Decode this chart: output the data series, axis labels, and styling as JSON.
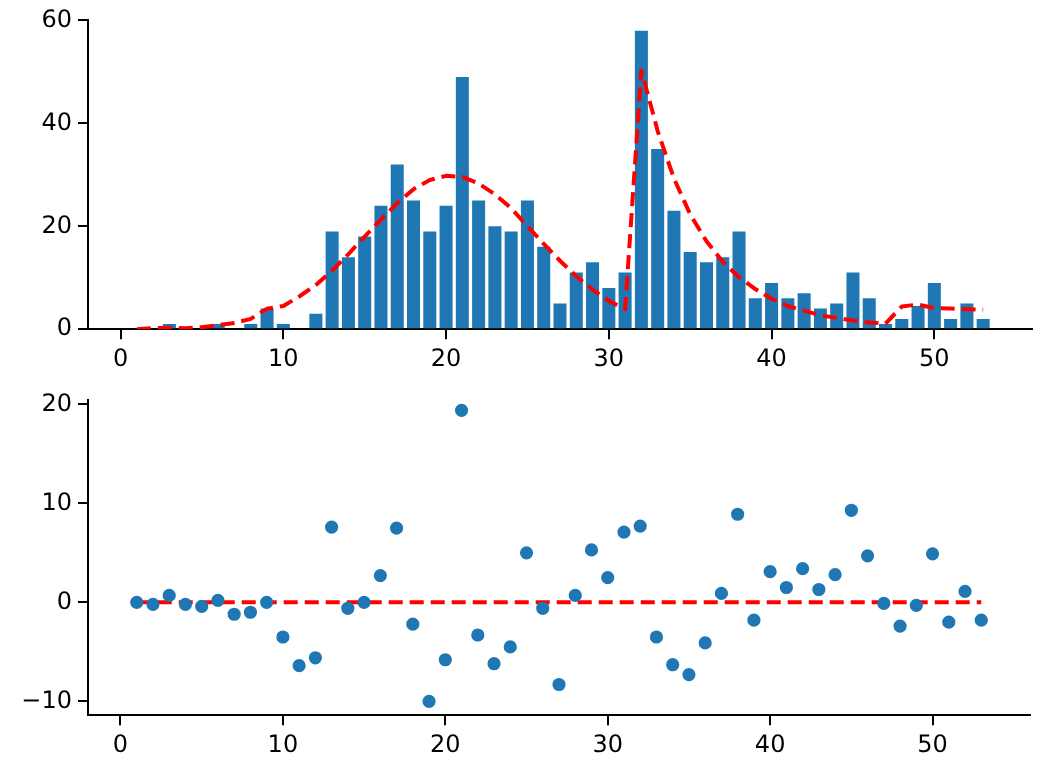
{
  "chart_data": [
    {
      "type": "bar",
      "x": [
        1,
        2,
        3,
        4,
        5,
        6,
        7,
        8,
        9,
        10,
        11,
        12,
        13,
        14,
        15,
        16,
        17,
        18,
        19,
        20,
        21,
        22,
        23,
        24,
        25,
        26,
        27,
        28,
        29,
        30,
        31,
        32,
        33,
        34,
        35,
        36,
        37,
        38,
        39,
        40,
        41,
        42,
        43,
        44,
        45,
        46,
        47,
        48,
        49,
        50,
        51,
        52,
        53
      ],
      "xlim": [
        -2,
        56
      ],
      "xticks": [
        0,
        10,
        20,
        30,
        40,
        50
      ],
      "ylim": [
        0,
        60
      ],
      "yticks": [
        0,
        20,
        40,
        60
      ],
      "grid": false,
      "legend": false,
      "series": [
        {
          "color": "#1f77b4",
          "values": [
            0,
            0,
            1,
            0,
            0,
            1,
            0,
            1,
            4,
            1,
            0,
            3,
            19,
            14,
            18,
            24,
            32,
            25,
            19,
            24,
            49,
            25,
            20,
            19,
            25,
            16,
            5,
            11,
            13,
            8,
            11,
            58,
            35,
            23,
            15,
            13,
            14,
            19,
            6,
            9,
            6,
            7,
            4,
            5,
            11,
            6,
            1,
            2,
            4.5,
            9,
            2,
            5,
            2
          ]
        },
        {
          "type": "line",
          "color": "#ff0000",
          "line_style": "dashed",
          "marker": "none",
          "values": [
            0,
            0.2,
            0.3,
            0.2,
            0.4,
            0.8,
            1.2,
            2,
            4,
            4.5,
            6.4,
            8.6,
            11.4,
            14.6,
            18,
            21.3,
            24.5,
            27.2,
            29,
            29.8,
            29.6,
            28.3,
            26.2,
            23.5,
            20,
            16.6,
            13.3,
            10.3,
            7.7,
            5.5,
            3.9,
            50.3,
            38.5,
            29.3,
            22.3,
            17.1,
            13.1,
            10.1,
            7.8,
            5.9,
            4.5,
            3.6,
            2.7,
            2.2,
            1.7,
            1.3,
            1.1,
            4.4,
            4.8,
            4.1,
            4,
            3.9,
            3.8
          ]
        }
      ]
    },
    {
      "type": "scatter",
      "x": [
        1,
        2,
        3,
        4,
        5,
        6,
        7,
        8,
        9,
        10,
        11,
        12,
        13,
        14,
        15,
        16,
        17,
        18,
        19,
        20,
        21,
        22,
        23,
        24,
        25,
        26,
        27,
        28,
        29,
        30,
        31,
        32,
        33,
        34,
        35,
        36,
        37,
        38,
        39,
        40,
        41,
        42,
        43,
        44,
        45,
        46,
        47,
        48,
        49,
        50,
        51,
        52,
        53
      ],
      "xlim": [
        -2,
        56
      ],
      "xticks": [
        0,
        10,
        20,
        30,
        40,
        50
      ],
      "ylim": [
        -11.4,
        20.4
      ],
      "yticks": [
        -10,
        0,
        10,
        20
      ],
      "grid": false,
      "legend": false,
      "series": [
        {
          "color": "#1f77b4",
          "marker": "circle",
          "values": [
            0,
            -0.2,
            0.7,
            -0.2,
            -0.4,
            0.2,
            -1.2,
            -1,
            0,
            -3.5,
            -6.4,
            -5.6,
            7.6,
            -0.6,
            0,
            2.7,
            7.5,
            -2.2,
            -10,
            -5.8,
            19.4,
            -3.3,
            -6.2,
            -4.5,
            5,
            -0.6,
            -8.3,
            0.7,
            5.3,
            2.5,
            7.1,
            7.7,
            -3.5,
            -6.3,
            -7.3,
            -4.1,
            0.9,
            8.9,
            -1.8,
            3.1,
            1.5,
            3.4,
            1.3,
            2.8,
            9.3,
            4.7,
            -0.1,
            -2.4,
            -0.3,
            4.9,
            -2,
            1.1,
            -1.8
          ]
        },
        {
          "type": "line",
          "x": [
            1,
            53
          ],
          "color": "#ff0000",
          "line_style": "dashed",
          "marker": "none",
          "values": [
            0,
            0
          ]
        }
      ]
    }
  ]
}
